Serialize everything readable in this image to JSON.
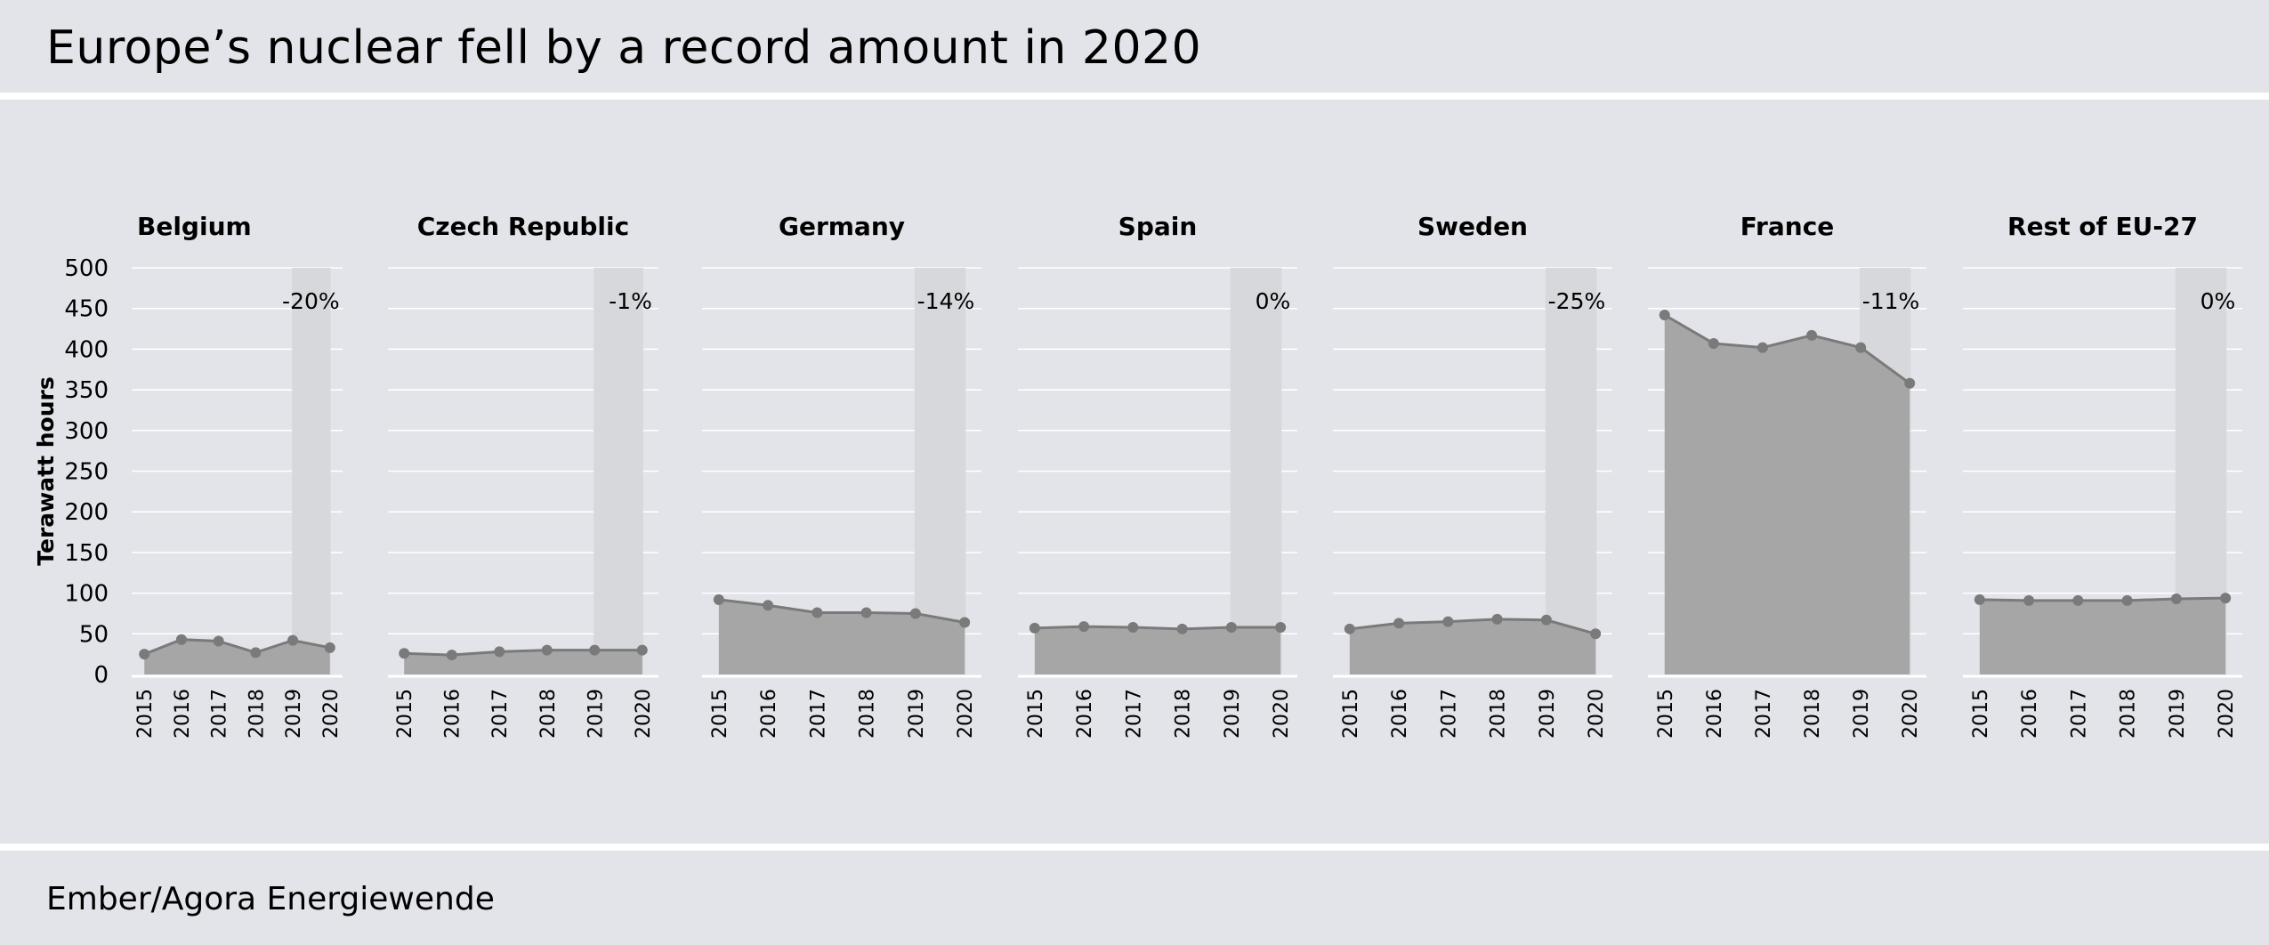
{
  "header": {
    "title": "Europe’s nuclear fell by a record amount in 2020"
  },
  "footer": {
    "source": "Ember/Agora Energiewende"
  },
  "colors": {
    "background": "#e3e4e9",
    "area_fill": "#a6a6a6",
    "line": "#7a7a7a",
    "highlight_band": "#d7d8dc",
    "gridline": "#ffffff"
  },
  "chart_data": {
    "type": "area",
    "ylabel": "Terawatt hours",
    "ylim": [
      0,
      500
    ],
    "yticks": [
      0,
      50,
      100,
      150,
      200,
      250,
      300,
      350,
      400,
      450,
      500
    ],
    "categories": [
      "2015",
      "2016",
      "2017",
      "2018",
      "2019",
      "2020"
    ],
    "highlight": "2019–2020",
    "grid": true,
    "series": [
      {
        "name": "Belgium",
        "values": [
          25,
          43,
          41,
          27,
          42,
          33
        ],
        "change_label": "-20%"
      },
      {
        "name": "Czech Republic",
        "values": [
          26,
          24,
          28,
          30,
          30,
          30
        ],
        "change_label": "-1%"
      },
      {
        "name": "Germany",
        "values": [
          92,
          85,
          76,
          76,
          75,
          64
        ],
        "change_label": "-14%"
      },
      {
        "name": "Spain",
        "values": [
          57,
          59,
          58,
          56,
          58,
          58
        ],
        "change_label": "0%"
      },
      {
        "name": "Sweden",
        "values": [
          56,
          63,
          65,
          68,
          67,
          50
        ],
        "change_label": "-25%"
      },
      {
        "name": "France",
        "values": [
          442,
          407,
          402,
          417,
          402,
          358
        ],
        "change_label": "-11%"
      },
      {
        "name": "Rest of EU-27",
        "values": [
          92,
          91,
          91,
          91,
          93,
          94
        ],
        "change_label": "0%"
      }
    ]
  }
}
